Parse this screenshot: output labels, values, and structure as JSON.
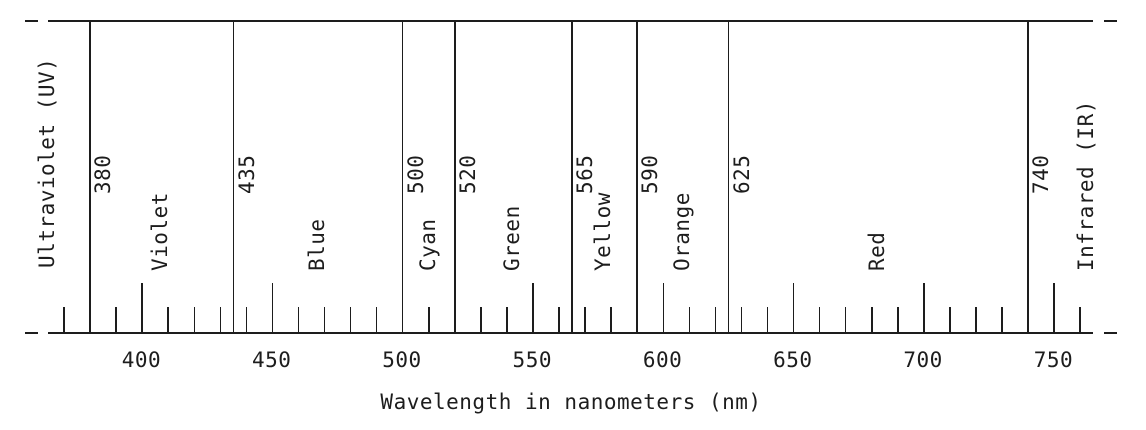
{
  "diagram": {
    "axis_title": "Wavelength in nanometers (nm)",
    "unit": "nm",
    "ink_color": "#1d1d1d",
    "background_color": "#ffffff",
    "boundaries_nm": [
      380,
      435,
      500,
      520,
      565,
      590,
      625,
      740
    ],
    "boundary_labels": [
      "380",
      "435",
      "500",
      "520",
      "565",
      "590",
      "625",
      "740"
    ],
    "bands": [
      {
        "name": "Ultraviolet (UV)",
        "from_nm": null,
        "to_nm": 380,
        "position": "left-margin"
      },
      {
        "name": "Violet",
        "from_nm": 380,
        "to_nm": 435,
        "position": "between"
      },
      {
        "name": "Blue",
        "from_nm": 435,
        "to_nm": 500,
        "position": "between"
      },
      {
        "name": "Cyan",
        "from_nm": 500,
        "to_nm": 520,
        "position": "between"
      },
      {
        "name": "Green",
        "from_nm": 520,
        "to_nm": 565,
        "position": "between"
      },
      {
        "name": "Yellow",
        "from_nm": 565,
        "to_nm": 590,
        "position": "between"
      },
      {
        "name": "Orange",
        "from_nm": 590,
        "to_nm": 625,
        "position": "between"
      },
      {
        "name": "Red",
        "from_nm": 625,
        "to_nm": 740,
        "position": "between"
      },
      {
        "name": "Infrared (IR)",
        "from_nm": 740,
        "to_nm": null,
        "position": "right-margin"
      }
    ],
    "major_ticks_nm": [
      400,
      450,
      500,
      550,
      600,
      650,
      700,
      750
    ],
    "major_tick_labels": [
      "400",
      "450",
      "500",
      "550",
      "600",
      "650",
      "700",
      "750"
    ],
    "minor_tick_step_nm": 10,
    "minor_tick_first_nm": 370,
    "minor_tick_last_nm": 760,
    "axis_broken_ends": true
  }
}
